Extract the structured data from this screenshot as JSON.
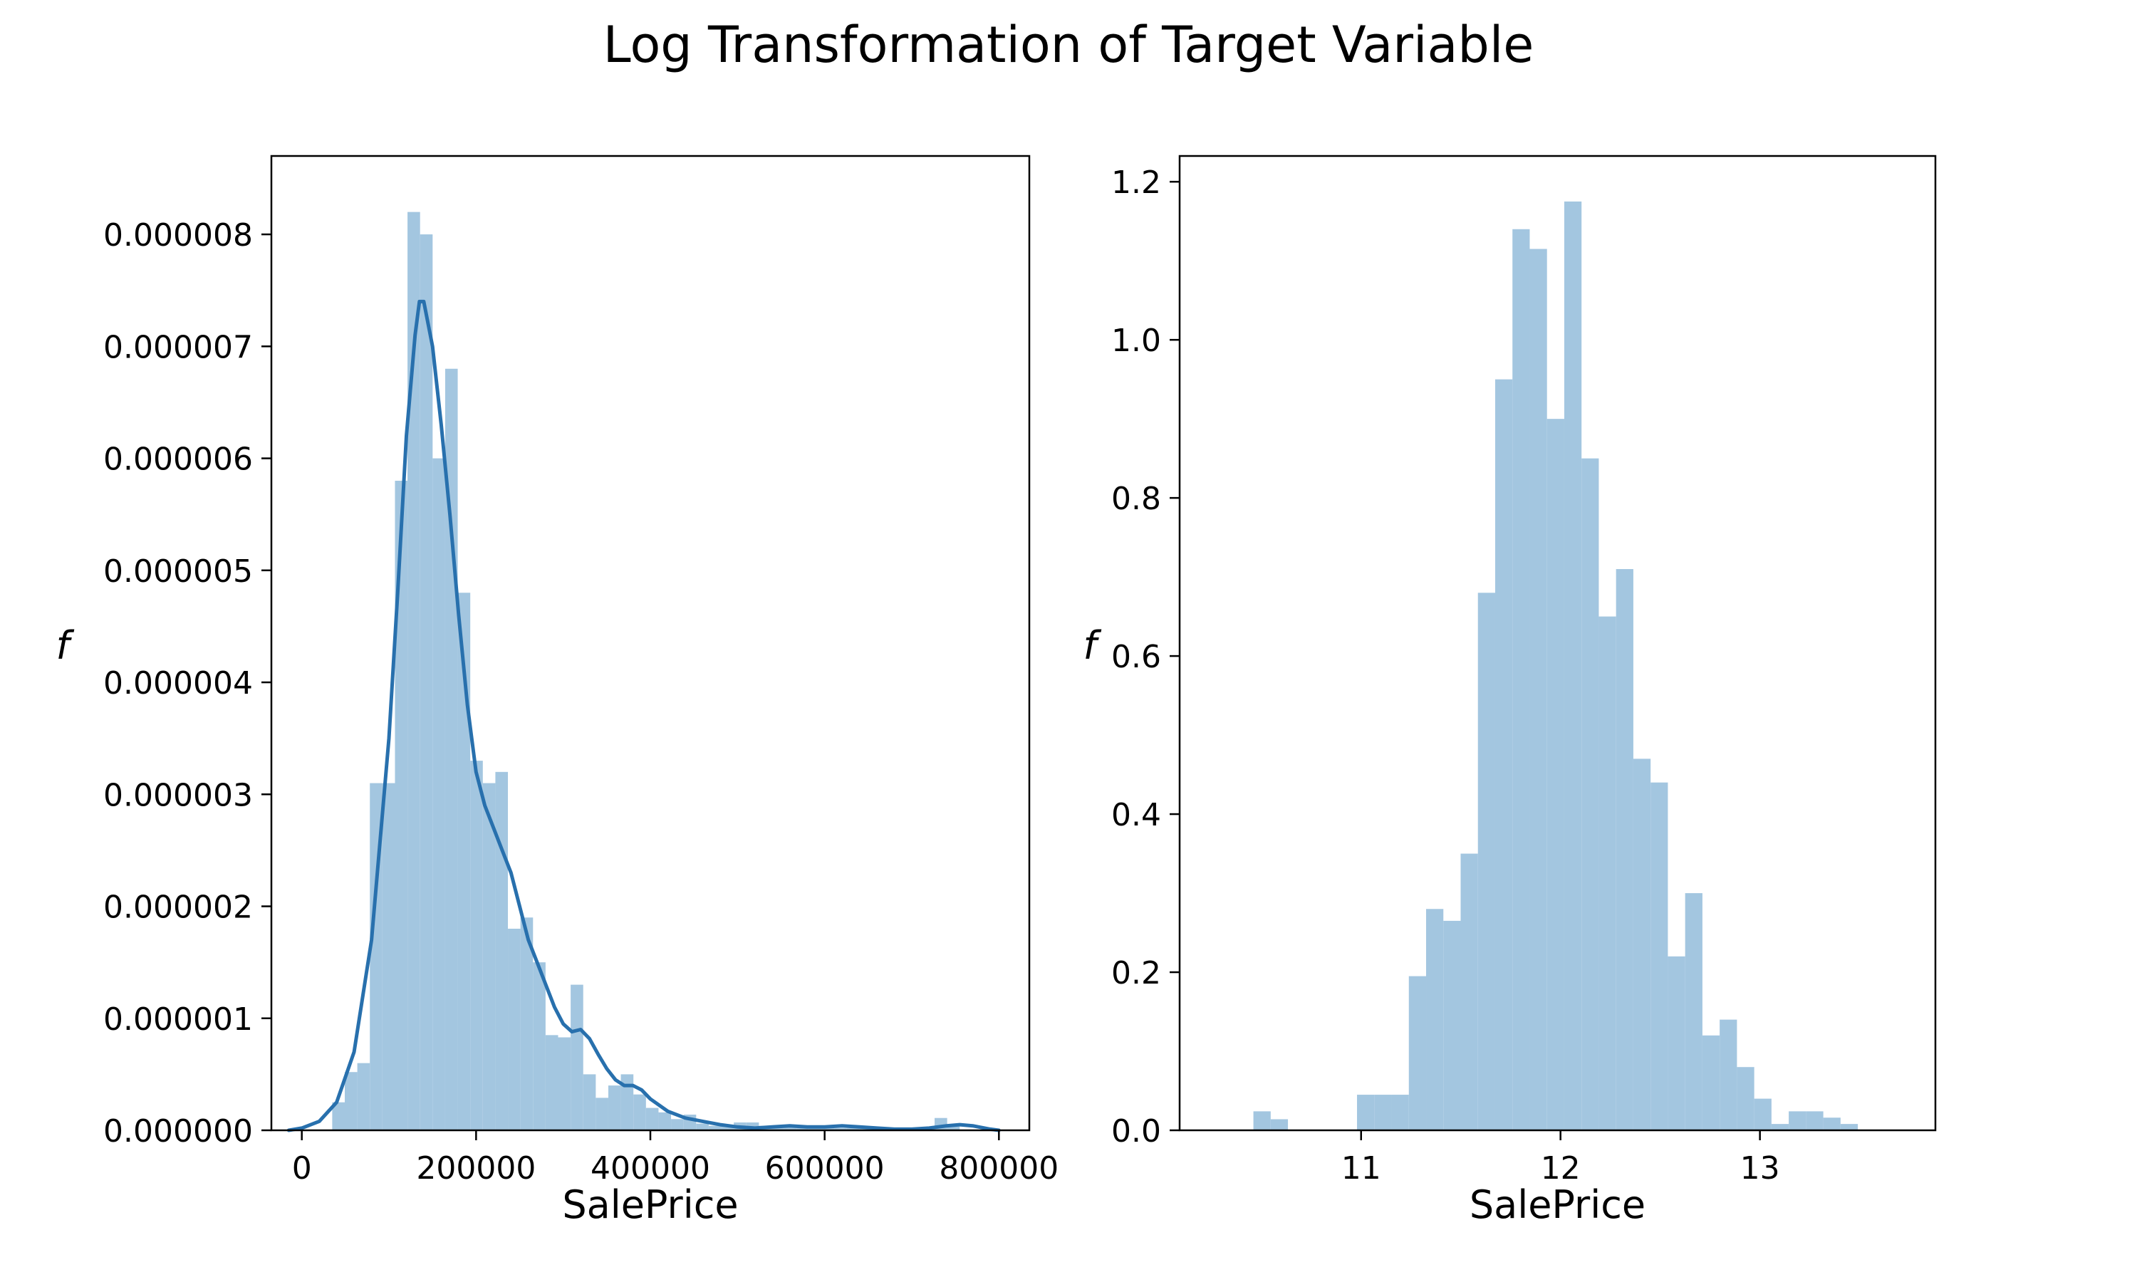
{
  "figure": {
    "title": "Log Transformation of Target Variable"
  },
  "style": {
    "bar_color": "#a3c6e0",
    "kde_color": "#2870ad",
    "axis_color": "#000000"
  },
  "chart_data": [
    {
      "type": "bar",
      "subtype": "histogram_with_kde",
      "xlabel": "SalePrice",
      "ylabel": "f",
      "xlim": [
        -34900,
        834900
      ],
      "ylim": [
        0,
        8.7e-06
      ],
      "x_ticks": [
        0,
        200000,
        400000,
        600000,
        800000
      ],
      "x_tick_labels": [
        "0",
        "200000",
        "400000",
        "600000",
        "800000"
      ],
      "y_ticks": [
        0,
        1e-06,
        2e-06,
        3e-06,
        4e-06,
        5e-06,
        6e-06,
        7e-06,
        8e-06
      ],
      "y_tick_labels": [
        "0.000000",
        "0.000001",
        "0.000002",
        "0.000003",
        "0.000004",
        "0.000005",
        "0.000006",
        "0.000007",
        "0.000008"
      ],
      "bin_start": 34900,
      "bin_width": 14402,
      "values": [
        2.5e-07,
        5.2e-07,
        6e-07,
        3.1e-06,
        3.1e-06,
        5.8e-06,
        8.2e-06,
        8e-06,
        6e-06,
        6.8e-06,
        4.8e-06,
        3.3e-06,
        3.1e-06,
        3.2e-06,
        1.8e-06,
        1.9e-06,
        1.5e-06,
        8.5e-07,
        8.3e-07,
        1.3e-06,
        5e-07,
        2.9e-07,
        4e-07,
        5e-07,
        3.2e-07,
        2e-07,
        1.6e-07,
        1e-07,
        1.4e-07,
        6e-08,
        4e-08,
        4e-08,
        7e-08,
        7e-08,
        4e-08,
        4e-08,
        4e-08,
        3e-08,
        3e-08,
        3e-08,
        2e-08,
        2e-08,
        2e-08,
        2e-08,
        2e-08,
        2e-08,
        2e-08,
        2e-08,
        1.1e-07,
        4e-08
      ],
      "kde": {
        "x": [
          -15000,
          0,
          20000,
          40000,
          60000,
          80000,
          100000,
          110000,
          120000,
          130000,
          135000,
          140000,
          150000,
          160000,
          170000,
          180000,
          190000,
          200000,
          210000,
          220000,
          230000,
          240000,
          250000,
          260000,
          270000,
          280000,
          290000,
          300000,
          310000,
          320000,
          330000,
          340000,
          350000,
          360000,
          370000,
          380000,
          390000,
          400000,
          420000,
          440000,
          460000,
          480000,
          500000,
          520000,
          540000,
          560000,
          580000,
          600000,
          620000,
          640000,
          660000,
          680000,
          700000,
          720000,
          740000,
          755000,
          770000,
          790000,
          800000
        ],
        "y": [
          0,
          2e-08,
          8e-08,
          2.5e-07,
          7e-07,
          1.7e-06,
          3.5e-06,
          4.8e-06,
          6.2e-06,
          7.1e-06,
          7.4e-06,
          7.4e-06,
          7e-06,
          6.3e-06,
          5.5e-06,
          4.6e-06,
          3.8e-06,
          3.2e-06,
          2.9e-06,
          2.7e-06,
          2.5e-06,
          2.3e-06,
          2e-06,
          1.7e-06,
          1.5e-06,
          1.3e-06,
          1.1e-06,
          9.5e-07,
          8.8e-07,
          9e-07,
          8.2e-07,
          6.8e-07,
          5.5e-07,
          4.5e-07,
          4e-07,
          4e-07,
          3.6e-07,
          2.8e-07,
          1.7e-07,
          1.1e-07,
          8e-08,
          5e-08,
          3e-08,
          2e-08,
          3e-08,
          4e-08,
          3e-08,
          3e-08,
          4e-08,
          3e-08,
          2e-08,
          1e-08,
          1e-08,
          2e-08,
          4e-08,
          5e-08,
          4e-08,
          1e-08,
          0
        ]
      }
    },
    {
      "type": "bar",
      "subtype": "histogram_with_kde",
      "xlabel": "SalePrice",
      "ylabel": "f",
      "xlim": [
        10.09,
        13.88
      ],
      "ylim": [
        0,
        1.2326
      ],
      "x_ticks": [
        11,
        12,
        13
      ],
      "x_tick_labels": [
        "11",
        "12",
        "13"
      ],
      "y_ticks": [
        0,
        0.2,
        0.4,
        0.6,
        0.8,
        1.0,
        1.2
      ],
      "y_tick_labels": [
        "0.0",
        "0.2",
        "0.4",
        "0.6",
        "0.8",
        "1.0",
        "1.2"
      ],
      "bin_start": 10.46,
      "bin_width": 0.0866,
      "values": [
        0.024,
        0.014,
        0.0,
        0.0,
        0.0,
        0.0,
        0.045,
        0.045,
        0.045,
        0.195,
        0.28,
        0.265,
        0.35,
        0.68,
        0.95,
        1.14,
        1.115,
        0.9,
        1.175,
        0.85,
        0.65,
        0.71,
        0.47,
        0.44,
        0.22,
        0.3,
        0.12,
        0.14,
        0.08,
        0.04,
        0.008,
        0.024,
        0.024,
        0.016,
        0.008
      ]
    }
  ]
}
